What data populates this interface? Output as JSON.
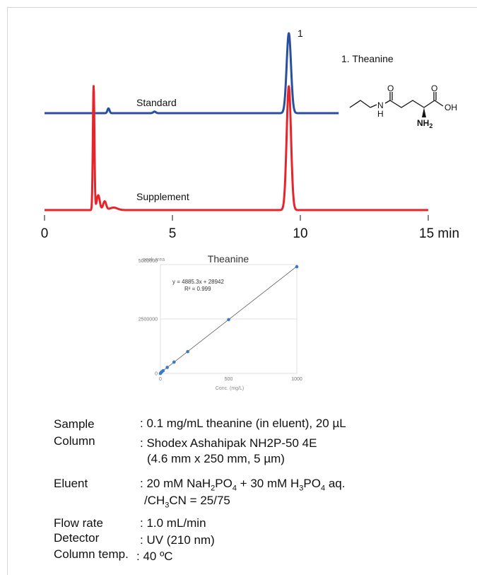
{
  "chart_data": [
    {
      "type": "line",
      "xlim": [
        0,
        15
      ],
      "x_unit": "min",
      "x_ticks": [
        {
          "value": 0,
          "label": "0"
        },
        {
          "value": 5,
          "label": "5"
        },
        {
          "value": 10,
          "label": "10"
        },
        {
          "value": 15,
          "label": "15 min"
        }
      ],
      "series": [
        {
          "name": "Standard",
          "color": "#2a4f9f",
          "xrange": [
            0,
            11.5
          ],
          "peaks": [
            {
              "x": 2.5,
              "height": 0.06,
              "width": 0.04
            },
            {
              "x": 4.3,
              "height": 0.02,
              "width": 0.05
            },
            {
              "x": 9.55,
              "height": 1.0,
              "width": 0.085
            }
          ]
        },
        {
          "name": "Supplement",
          "color": "#e8232a",
          "xrange": [
            0,
            15
          ],
          "peaks": [
            {
              "x": 1.92,
              "height": 1.0,
              "width": 0.03
            },
            {
              "x": 2.1,
              "height": 0.12,
              "width": 0.06
            },
            {
              "x": 2.35,
              "height": 0.07,
              "width": 0.06
            },
            {
              "x": 2.7,
              "height": 0.02,
              "width": 0.15
            },
            {
              "x": 9.55,
              "height": 1.0,
              "width": 0.085
            }
          ]
        }
      ],
      "peak_label": {
        "x": 9.55,
        "text": "1"
      },
      "legend_entry": "1. Theanine"
    },
    {
      "type": "scatter",
      "title": "Theanine",
      "ylabel": "peak area",
      "xlabel": "Conc. (mg/L)",
      "xlim": [
        0,
        1000
      ],
      "ylim": [
        0,
        5000000
      ],
      "x_ticks": [
        0,
        500,
        1000
      ],
      "y_ticks": [
        0,
        2500000,
        5000000
      ],
      "grid": true,
      "points": [
        {
          "x": 0,
          "y": 0
        },
        {
          "x": 5,
          "y": 40000
        },
        {
          "x": 10,
          "y": 75000
        },
        {
          "x": 20,
          "y": 125000
        },
        {
          "x": 50,
          "y": 275000
        },
        {
          "x": 100,
          "y": 520000
        },
        {
          "x": 200,
          "y": 1000000
        },
        {
          "x": 500,
          "y": 2470000
        },
        {
          "x": 1000,
          "y": 4900000
        }
      ],
      "trendline": {
        "slope": 4885.3,
        "intercept": 28942
      },
      "equation": "y = 4885.3x + 28942",
      "r_squared": "R² = 0.999",
      "color": "#3c78c3"
    }
  ],
  "structure": {
    "atoms": {
      "o1": "O",
      "o2": "O",
      "oh": "OH",
      "nh": "N",
      "h": "H",
      "nh2": "NH",
      "nh2_sub": "2"
    }
  },
  "conditions": {
    "sample_label": "Sample",
    "sample_value": ": 0.1 mg/mL theanine (in eluent), 20 µL",
    "column_label": "Column",
    "column_value": ": Shodex Ashahipak NH2P-50 4E",
    "column_value2": "(4.6 mm x 250 mm, 5 µm)",
    "eluent_label": "Eluent",
    "eluent_p1": ": 20 mM NaH",
    "eluent_s1": "2",
    "eluent_p2": "PO",
    "eluent_s2": "4",
    "eluent_p3": " + 30 mM H",
    "eluent_s3": "3",
    "eluent_p4": "PO",
    "eluent_s4": "4",
    "eluent_p5": " aq.",
    "eluent2_p1": "/CH",
    "eluent2_s1": "3",
    "eluent2_p2": "CN = 25/75",
    "flow_label": "Flow rate",
    "flow_value": ": 1.0 mL/min",
    "detector_label": "Detector",
    "detector_value": ": UV (210 nm)",
    "temp_label": "Column temp.",
    "temp_value": ": 40 ºC"
  }
}
